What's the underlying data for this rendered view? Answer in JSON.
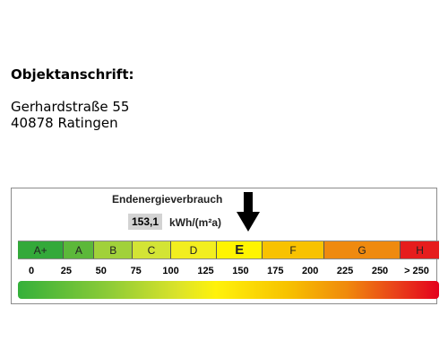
{
  "address": {
    "heading": "Objektanschrift:",
    "street": "Gerhardstraße 55",
    "city": "40878 Ratingen"
  },
  "energy": {
    "title": "Endenergieverbrauch",
    "value": "153,1",
    "unit": "kWh/(m²a)",
    "indicator_value": 153.1,
    "active_class": "E",
    "scale_max": 275,
    "classes": [
      {
        "label": "A+",
        "from": 0,
        "to": 30,
        "color": "#33a93a"
      },
      {
        "label": "A",
        "from": 30,
        "to": 50,
        "color": "#5cb83a"
      },
      {
        "label": "B",
        "from": 50,
        "to": 75,
        "color": "#a1d13a"
      },
      {
        "label": "C",
        "from": 75,
        "to": 100,
        "color": "#d3e435"
      },
      {
        "label": "D",
        "from": 100,
        "to": 130,
        "color": "#f2ee1f"
      },
      {
        "label": "E",
        "from": 130,
        "to": 160,
        "color": "#fff400"
      },
      {
        "label": "F",
        "from": 160,
        "to": 200,
        "color": "#f8c200"
      },
      {
        "label": "G",
        "from": 200,
        "to": 250,
        "color": "#ef8a0f"
      },
      {
        "label": "H",
        "from": 250,
        "to": 275,
        "color": "#e61d1d"
      }
    ],
    "ticks": [
      {
        "label": "0",
        "value": 0
      },
      {
        "label": "25",
        "value": 25
      },
      {
        "label": "50",
        "value": 50
      },
      {
        "label": "75",
        "value": 75
      },
      {
        "label": "100",
        "value": 100
      },
      {
        "label": "125",
        "value": 125
      },
      {
        "label": "150",
        "value": 150
      },
      {
        "label": "175",
        "value": 175
      },
      {
        "label": "200",
        "value": 200
      },
      {
        "label": "225",
        "value": 225
      },
      {
        "label": "250",
        "value": 250
      },
      {
        "label": "> 250",
        "value": 275
      }
    ],
    "arrow_icon": "down-arrow-icon"
  }
}
